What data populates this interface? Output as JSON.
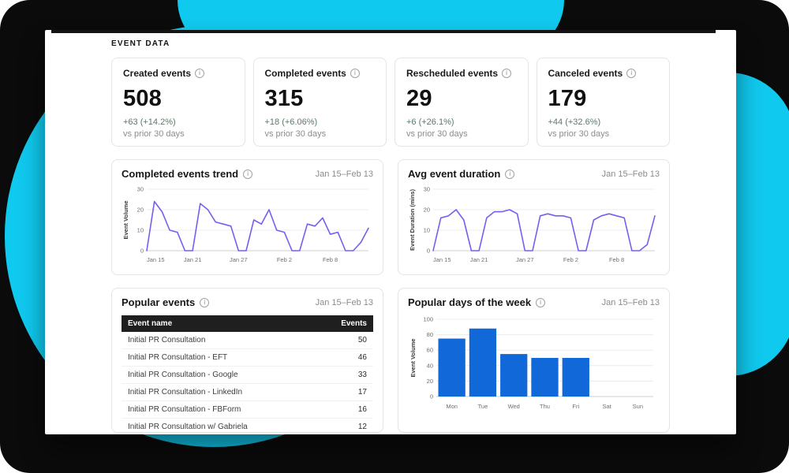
{
  "page": {
    "section_label": "EVENT DATA"
  },
  "icons": {
    "info": "i"
  },
  "colors": {
    "background_black": "#0b0b0b",
    "blob_cyan": "#10c9ee",
    "line_purple": "#7a5cf0",
    "bar_blue": "#1169d9",
    "delta_green": "#5b7a68"
  },
  "stats": [
    {
      "title": "Created events",
      "value": "508",
      "delta": "+63 (+14.2%)",
      "caption": "vs prior 30 days"
    },
    {
      "title": "Completed events",
      "value": "315",
      "delta": "+18 (+6.06%)",
      "caption": "vs prior 30 days"
    },
    {
      "title": "Rescheduled events",
      "value": "29",
      "delta": "+6 (+26.1%)",
      "caption": "vs prior 30 days"
    },
    {
      "title": "Canceled events",
      "value": "179",
      "delta": "+44 (+32.6%)",
      "caption": "vs prior 30 days"
    }
  ],
  "chart_data": [
    {
      "type": "line",
      "title": "Completed events trend",
      "date_range": "Jan 15–Feb 13",
      "ylabel": "Event Volume",
      "ylim": [
        0,
        30
      ],
      "yticks": [
        0,
        10,
        20,
        30
      ],
      "xticks": [
        "Jan 15",
        "Jan 21",
        "Jan 27",
        "Feb 2",
        "Feb 8"
      ],
      "xtick_index": [
        0,
        6,
        12,
        18,
        24
      ],
      "values": [
        0,
        24,
        19,
        10,
        9,
        0,
        0,
        23,
        20,
        14,
        13,
        12,
        0,
        0,
        15,
        13,
        20,
        10,
        9,
        0,
        0,
        13,
        12,
        16,
        8,
        9,
        0,
        0,
        4,
        11
      ]
    },
    {
      "type": "line",
      "title": "Avg event duration",
      "date_range": "Jan 15–Feb 13",
      "ylabel": "Event Duration (mins)",
      "ylim": [
        0,
        30
      ],
      "yticks": [
        0,
        10,
        20,
        30
      ],
      "xticks": [
        "Jan 15",
        "Jan 21",
        "Jan 27",
        "Feb 2",
        "Feb 8"
      ],
      "xtick_index": [
        0,
        6,
        12,
        18,
        24
      ],
      "values": [
        0,
        16,
        17,
        20,
        15,
        0,
        0,
        16,
        19,
        19,
        20,
        18,
        0,
        0,
        17,
        18,
        17,
        17,
        16,
        0,
        0,
        15,
        17,
        18,
        17,
        16,
        0,
        0,
        3,
        17
      ]
    },
    {
      "type": "bar",
      "title": "Popular days of the week",
      "date_range": "Jan 15–Feb 13",
      "ylabel": "Event Volume",
      "ylim": [
        0,
        100
      ],
      "yticks": [
        0,
        20,
        40,
        60,
        80,
        100
      ],
      "categories": [
        "Mon",
        "Tue",
        "Wed",
        "Thu",
        "Fri",
        "Sat",
        "Sun"
      ],
      "values": [
        75,
        88,
        55,
        50,
        50,
        0,
        0
      ]
    }
  ],
  "popular_events": {
    "title": "Popular events",
    "date_range": "Jan 15–Feb 13",
    "columns": [
      "Event name",
      "Events"
    ],
    "rows": [
      [
        "Initial PR Consultation",
        "50"
      ],
      [
        "Initial PR Consultation - EFT",
        "46"
      ],
      [
        "Initial PR Consultation - Google",
        "33"
      ],
      [
        "Initial PR Consultation - LinkedIn",
        "17"
      ],
      [
        "Initial PR Consultation - FBForm",
        "16"
      ],
      [
        "Initial PR Consultation w/ Gabriela",
        "12"
      ]
    ]
  }
}
